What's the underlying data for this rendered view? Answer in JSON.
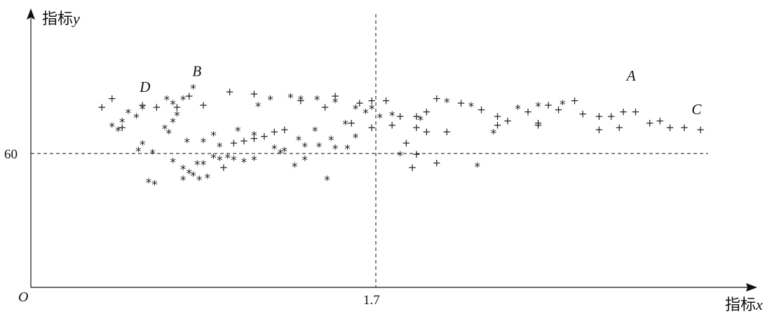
{
  "chart_data": {
    "type": "scatter",
    "title": "",
    "xlabel_prefix": "指标",
    "xlabel_var": "x",
    "ylabel_prefix": "指标",
    "ylabel_var": "y",
    "origin_label": "O",
    "x_ref": {
      "value": 1.7,
      "label": "1.7"
    },
    "y_ref": {
      "value": 60,
      "label": "60"
    },
    "xlim": [
      0,
      3.3
    ],
    "ylim": [
      0,
      100
    ],
    "grid": false,
    "series": [
      {
        "marker": "star",
        "points": [
          [
            0.8,
            89
          ],
          [
            0.75,
            84
          ],
          [
            0.48,
            78
          ],
          [
            0.45,
            74
          ],
          [
            0.52,
            76
          ],
          [
            0.55,
            80
          ],
          [
            0.4,
            72
          ],
          [
            0.43,
            70
          ],
          [
            0.67,
            84
          ],
          [
            0.7,
            82
          ],
          [
            0.66,
            71
          ],
          [
            0.68,
            69
          ],
          [
            0.72,
            77
          ],
          [
            0.7,
            74
          ],
          [
            0.55,
            64
          ],
          [
            0.6,
            60
          ],
          [
            0.77,
            65
          ],
          [
            0.85,
            65
          ],
          [
            0.9,
            68
          ],
          [
            0.93,
            63
          ],
          [
            0.97,
            58
          ],
          [
            1.02,
            70
          ],
          [
            1.1,
            68
          ],
          [
            1.2,
            62
          ],
          [
            1.25,
            61
          ],
          [
            1.35,
            63
          ],
          [
            1.32,
            66
          ],
          [
            1.4,
            70
          ],
          [
            1.48,
            66
          ],
          [
            1.6,
            67
          ],
          [
            1.55,
            73
          ],
          [
            1.65,
            78
          ],
          [
            1.72,
            76
          ],
          [
            1.78,
            77
          ],
          [
            1.92,
            75
          ],
          [
            1.12,
            81
          ],
          [
            1.18,
            84
          ],
          [
            1.28,
            85
          ],
          [
            1.33,
            84
          ],
          [
            1.41,
            84
          ],
          [
            1.5,
            83
          ],
          [
            0.85,
            55
          ],
          [
            0.82,
            55
          ],
          [
            0.9,
            58
          ],
          [
            0.93,
            57
          ],
          [
            1.0,
            57
          ],
          [
            0.53,
            61
          ],
          [
            0.7,
            56
          ],
          [
            0.75,
            53
          ],
          [
            0.78,
            51
          ],
          [
            0.8,
            50
          ],
          [
            0.83,
            48
          ],
          [
            0.87,
            49
          ],
          [
            0.61,
            46
          ],
          [
            0.58,
            47
          ],
          [
            0.75,
            48
          ],
          [
            1.05,
            56
          ],
          [
            1.1,
            57
          ],
          [
            1.23,
            60
          ],
          [
            1.3,
            54
          ],
          [
            1.35,
            57
          ],
          [
            1.42,
            63
          ],
          [
            1.5,
            62
          ],
          [
            1.56,
            62
          ],
          [
            1.46,
            48
          ],
          [
            1.82,
            59
          ],
          [
            2.2,
            54
          ],
          [
            1.68,
            80
          ],
          [
            1.6,
            80
          ],
          [
            2.05,
            83
          ],
          [
            2.17,
            81
          ],
          [
            2.28,
            69
          ],
          [
            2.62,
            82
          ],
          [
            2.5,
            81
          ],
          [
            2.4,
            80
          ]
        ]
      },
      {
        "marker": "plus",
        "points": [
          [
            0.35,
            81
          ],
          [
            0.4,
            85
          ],
          [
            0.55,
            82
          ],
          [
            0.62,
            81
          ],
          [
            0.72,
            81
          ],
          [
            0.78,
            86
          ],
          [
            0.85,
            82
          ],
          [
            0.98,
            88
          ],
          [
            1.1,
            87
          ],
          [
            1.33,
            84
          ],
          [
            1.5,
            86
          ],
          [
            1.45,
            81
          ],
          [
            1.62,
            83
          ],
          [
            1.68,
            84
          ],
          [
            1.75,
            84
          ],
          [
            1.82,
            77
          ],
          [
            1.9,
            77
          ],
          [
            1.95,
            79
          ],
          [
            2.0,
            85
          ],
          [
            2.12,
            83
          ],
          [
            2.22,
            80
          ],
          [
            2.3,
            77
          ],
          [
            2.35,
            75
          ],
          [
            2.45,
            79
          ],
          [
            2.55,
            82
          ],
          [
            2.6,
            80
          ],
          [
            2.68,
            84
          ],
          [
            2.72,
            78
          ],
          [
            2.8,
            77
          ],
          [
            2.86,
            77
          ],
          [
            2.92,
            79
          ],
          [
            2.98,
            79
          ],
          [
            3.05,
            74
          ],
          [
            3.1,
            75
          ],
          [
            3.15,
            72
          ],
          [
            3.22,
            72
          ],
          [
            3.3,
            71
          ],
          [
            2.5,
            73
          ],
          [
            1.9,
            72
          ],
          [
            1.95,
            70
          ],
          [
            2.3,
            73
          ],
          [
            2.5,
            74
          ],
          [
            1.78,
            73
          ],
          [
            1.68,
            72
          ],
          [
            1.58,
            74
          ],
          [
            0.45,
            72
          ],
          [
            1.0,
            65
          ],
          [
            1.05,
            66
          ],
          [
            1.1,
            67
          ],
          [
            1.15,
            68
          ],
          [
            1.2,
            70
          ],
          [
            1.25,
            71
          ],
          [
            2.05,
            70
          ],
          [
            2.8,
            71
          ],
          [
            2.9,
            72
          ],
          [
            0.95,
            54
          ],
          [
            1.85,
            65
          ],
          [
            1.88,
            54
          ],
          [
            2.0,
            56
          ],
          [
            1.9,
            60
          ]
        ]
      }
    ],
    "labelled_points": [
      {
        "label": "A",
        "x": 2.95,
        "y": 87
      },
      {
        "label": "B",
        "x": 0.81,
        "y": 89
      },
      {
        "label": "C",
        "x": 3.27,
        "y": 72
      },
      {
        "label": "D",
        "x": 0.55,
        "y": 82
      }
    ]
  }
}
